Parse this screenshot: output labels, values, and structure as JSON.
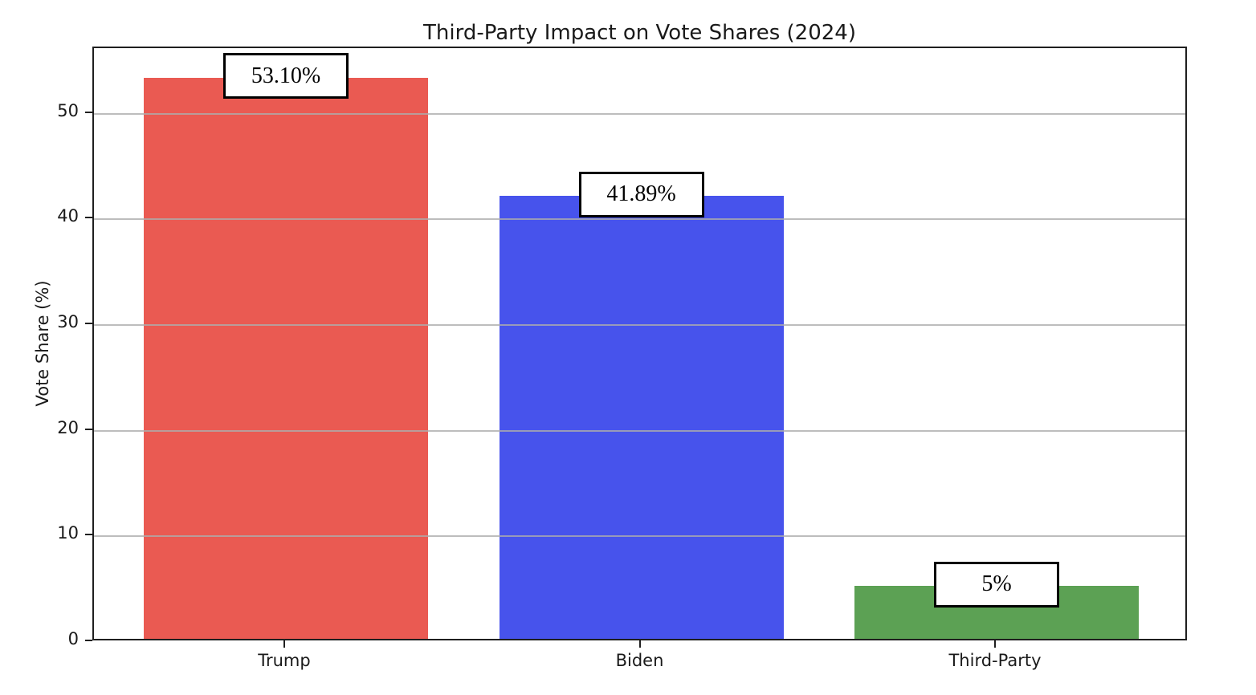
{
  "chart_data": {
    "type": "bar",
    "title": "Third-Party Impact on Vote Shares (2024)",
    "xlabel": "",
    "ylabel": "Vote Share (%)",
    "categories": [
      "Trump",
      "Biden",
      "Third-Party"
    ],
    "values": [
      53.1,
      41.89,
      5
    ],
    "bar_labels": [
      "53.10%",
      "41.89%",
      "5%"
    ],
    "bar_colors": [
      "#EA5A52",
      "#4753EC",
      "#5CA154"
    ],
    "ylim": [
      0,
      56.2
    ],
    "yticks": [
      0,
      10,
      20,
      30,
      40,
      50
    ],
    "grid": "horizontal gridlines drawn above bars",
    "legend": "none",
    "label_box_style": "white box, black border, serif text, centered at top of each bar"
  }
}
